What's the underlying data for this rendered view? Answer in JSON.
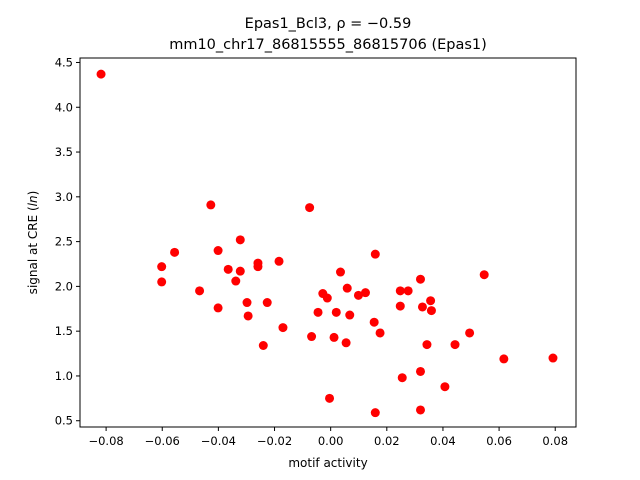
{
  "chart_data": {
    "type": "scatter",
    "title_line1": "Epas1_Bcl3, ρ = −0.59",
    "title_line2": "mm10_chr17_86815555_86815706 (Epas1)",
    "xlabel": "motif activity",
    "ylabel": "signal at CRE (ln)",
    "xlim": [
      -0.0893,
      0.0874
    ],
    "ylim": [
      0.43,
      4.55
    ],
    "xticks": [
      -0.08,
      -0.06,
      -0.04,
      -0.02,
      0.0,
      0.02,
      0.04,
      0.06,
      0.08
    ],
    "xtick_labels": [
      "−0.08",
      "−0.06",
      "−0.04",
      "−0.02",
      "0.00",
      "0.02",
      "0.04",
      "0.06",
      "0.08"
    ],
    "yticks": [
      0.5,
      1.0,
      1.5,
      2.0,
      2.5,
      3.0,
      3.5,
      4.0,
      4.5
    ],
    "ytick_labels": [
      "0.5",
      "1.0",
      "1.5",
      "2.0",
      "2.5",
      "3.0",
      "3.5",
      "4.0",
      "4.5"
    ],
    "grid": false,
    "marker_color": "#ff0000",
    "points": [
      {
        "x": -0.0818,
        "y": 4.37
      },
      {
        "x": -0.0427,
        "y": 2.91
      },
      {
        "x": -0.0075,
        "y": 2.88
      },
      {
        "x": -0.0322,
        "y": 2.52
      },
      {
        "x": -0.0401,
        "y": 2.4
      },
      {
        "x": -0.0556,
        "y": 2.38
      },
      {
        "x": 0.0159,
        "y": 2.36
      },
      {
        "x": -0.0184,
        "y": 2.28
      },
      {
        "x": -0.0259,
        "y": 2.26
      },
      {
        "x": -0.0259,
        "y": 2.22
      },
      {
        "x": -0.0602,
        "y": 2.22
      },
      {
        "x": -0.0365,
        "y": 2.19
      },
      {
        "x": -0.0322,
        "y": 2.17
      },
      {
        "x": 0.0035,
        "y": 2.16
      },
      {
        "x": 0.0547,
        "y": 2.13
      },
      {
        "x": 0.032,
        "y": 2.08
      },
      {
        "x": -0.0602,
        "y": 2.05
      },
      {
        "x": -0.0338,
        "y": 2.06
      },
      {
        "x": 0.0059,
        "y": 1.98
      },
      {
        "x": -0.0467,
        "y": 1.95
      },
      {
        "x": 0.0248,
        "y": 1.95
      },
      {
        "x": 0.0276,
        "y": 1.95
      },
      {
        "x": 0.0124,
        "y": 1.93
      },
      {
        "x": -0.0028,
        "y": 1.92
      },
      {
        "x": 0.0099,
        "y": 1.9
      },
      {
        "x": -0.0012,
        "y": 1.87
      },
      {
        "x": 0.0356,
        "y": 1.84
      },
      {
        "x": -0.0226,
        "y": 1.82
      },
      {
        "x": -0.0298,
        "y": 1.82
      },
      {
        "x": 0.0248,
        "y": 1.78
      },
      {
        "x": 0.0327,
        "y": 1.77
      },
      {
        "x": -0.0401,
        "y": 1.76
      },
      {
        "x": 0.0359,
        "y": 1.73
      },
      {
        "x": -0.0045,
        "y": 1.71
      },
      {
        "x": 0.002,
        "y": 1.71
      },
      {
        "x": 0.0068,
        "y": 1.68
      },
      {
        "x": -0.0294,
        "y": 1.67
      },
      {
        "x": 0.0155,
        "y": 1.6
      },
      {
        "x": -0.017,
        "y": 1.54
      },
      {
        "x": 0.0176,
        "y": 1.48
      },
      {
        "x": 0.0495,
        "y": 1.48
      },
      {
        "x": -0.0068,
        "y": 1.44
      },
      {
        "x": 0.0012,
        "y": 1.43
      },
      {
        "x": 0.0055,
        "y": 1.37
      },
      {
        "x": -0.024,
        "y": 1.34
      },
      {
        "x": 0.0343,
        "y": 1.35
      },
      {
        "x": 0.0443,
        "y": 1.35
      },
      {
        "x": 0.0617,
        "y": 1.19
      },
      {
        "x": 0.0792,
        "y": 1.2
      },
      {
        "x": 0.032,
        "y": 1.05
      },
      {
        "x": 0.0255,
        "y": 0.98
      },
      {
        "x": 0.0407,
        "y": 0.88
      },
      {
        "x": -0.0004,
        "y": 0.75
      },
      {
        "x": 0.032,
        "y": 0.62
      },
      {
        "x": 0.0159,
        "y": 0.59
      }
    ]
  }
}
